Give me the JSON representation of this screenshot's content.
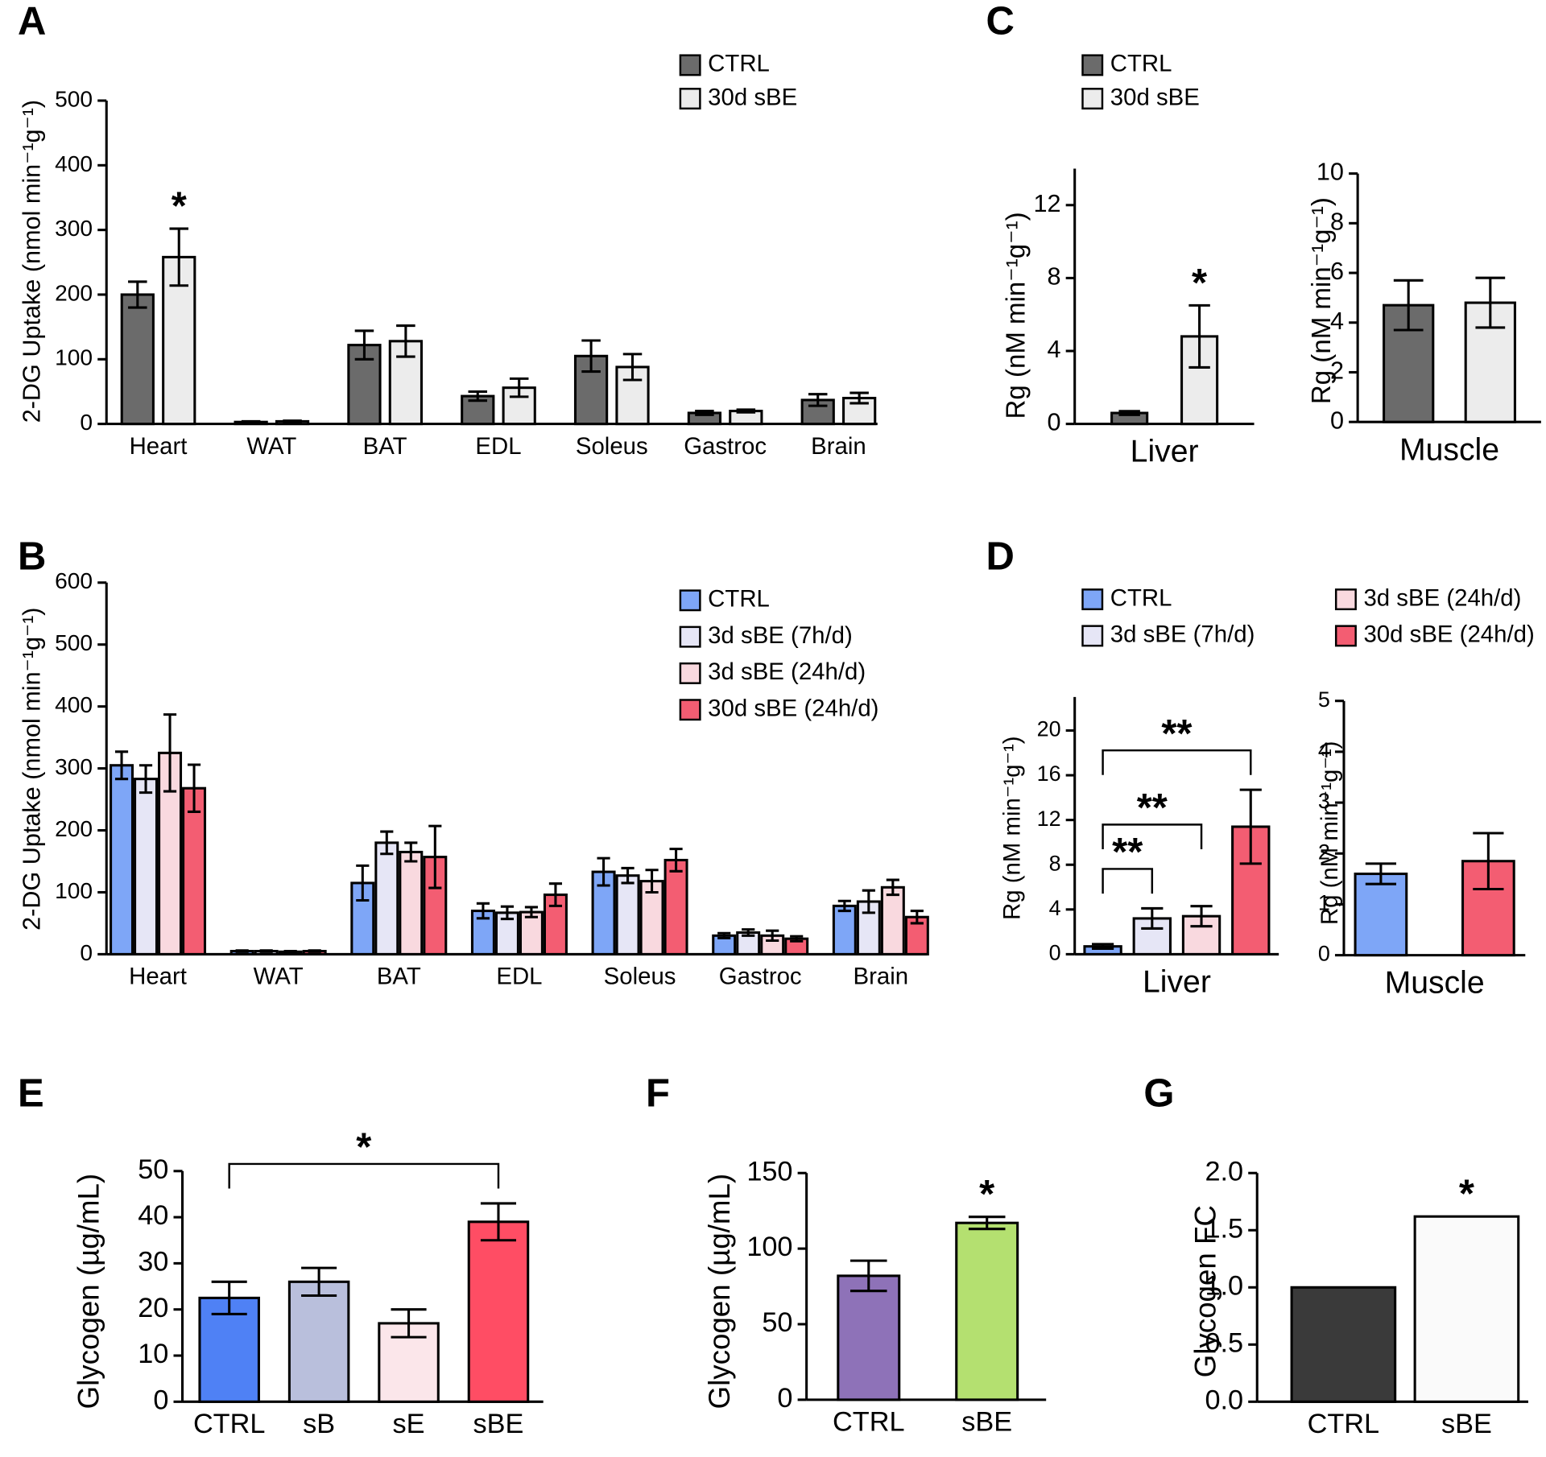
{
  "chart_data": [
    {
      "type": "bar",
      "panel": "A",
      "ylabel": "2-DG Uptake (nmol min⁻¹g⁻¹)",
      "categories": [
        "Heart",
        "WAT",
        "BAT",
        "EDL",
        "Soleus",
        "Gastroc",
        "Brain"
      ],
      "series": [
        {
          "name": "CTRL",
          "color": "#6b6b6b",
          "values": [
            200,
            3,
            122,
            43,
            105,
            17,
            37
          ],
          "errors": [
            20,
            1,
            22,
            7,
            24,
            3,
            9
          ]
        },
        {
          "name": "30d sBE",
          "color": "#ececec",
          "values": [
            258,
            4,
            128,
            56,
            88,
            20,
            40
          ],
          "errors": [
            44,
            1,
            24,
            14,
            20,
            2,
            8
          ]
        }
      ],
      "ylim": [
        0,
        500
      ],
      "yticks": [
        0,
        100,
        200,
        300,
        400,
        500
      ],
      "legend": true,
      "annotations": [
        {
          "text": "*",
          "bar": 1
        }
      ]
    },
    {
      "type": "bar",
      "panel": "B",
      "ylabel": "2-DG Uptake (nmol min⁻¹g⁻¹)",
      "categories": [
        "Heart",
        "WAT",
        "BAT",
        "EDL",
        "Soleus",
        "Gastroc",
        "Brain"
      ],
      "series": [
        {
          "name": "CTRL",
          "color": "#7ea6f7",
          "values": [
            305,
            5,
            115,
            70,
            133,
            30,
            78
          ],
          "errors": [
            22,
            1,
            28,
            12,
            22,
            4,
            8
          ]
        },
        {
          "name": "3d sBE (7h/d)",
          "color": "#e6e6f6",
          "values": [
            283,
            5,
            180,
            67,
            127,
            35,
            85
          ],
          "errors": [
            22,
            1,
            18,
            10,
            12,
            5,
            18
          ]
        },
        {
          "name": "3d sBE (24h/d)",
          "color": "#f9d9df",
          "values": [
            325,
            4,
            165,
            68,
            118,
            30,
            108
          ],
          "errors": [
            62,
            1,
            15,
            8,
            18,
            8,
            12
          ]
        },
        {
          "name": "30d sBE (24h/d)",
          "color": "#f35d72",
          "values": [
            268,
            5,
            157,
            96,
            152,
            25,
            60
          ],
          "errors": [
            38,
            1,
            50,
            18,
            18,
            4,
            10
          ]
        }
      ],
      "ylim": [
        0,
        600
      ],
      "yticks": [
        0,
        100,
        200,
        300,
        400,
        500,
        600
      ],
      "legend": true
    },
    {
      "type": "bar",
      "panel": "C",
      "ylabel": "Rg (nM min⁻¹g⁻¹)",
      "xlabel": "Liver",
      "series": [
        {
          "name": "CTRL",
          "color": "#6b6b6b",
          "values": [
            0.6
          ],
          "errors": [
            0.1
          ]
        },
        {
          "name": "30d sBE",
          "color": "#ececec",
          "values": [
            4.8
          ],
          "errors": [
            1.7
          ]
        }
      ],
      "ylim": [
        0,
        14
      ],
      "yticks": [
        0,
        4,
        8,
        12
      ],
      "legend": true,
      "annotations": [
        {
          "text": "*",
          "bar": 1
        }
      ]
    },
    {
      "type": "bar",
      "ylabel": "Rg (nM min⁻¹g⁻¹)",
      "xlabel": "Muscle",
      "series": [
        {
          "color": "#6b6b6b",
          "values": [
            4.7
          ],
          "errors": [
            1.0
          ]
        },
        {
          "color": "#ececec",
          "values": [
            4.8
          ],
          "errors": [
            1.0
          ]
        }
      ],
      "ylim": [
        0,
        10
      ],
      "yticks": [
        0,
        2,
        4,
        6,
        8,
        10
      ]
    },
    {
      "type": "bar",
      "panel": "D",
      "ylabel": "Rg (nM min⁻¹g⁻¹)",
      "xlabel": "Liver",
      "series": [
        {
          "name": "CTRL",
          "color": "#7ea6f7",
          "values": [
            0.7
          ],
          "errors": [
            0.2
          ]
        },
        {
          "name": "3d sBE (7h/d)",
          "color": "#e6e6f6",
          "values": [
            3.2
          ],
          "errors": [
            0.9
          ]
        },
        {
          "name": "3d sBE (24h/d)",
          "color": "#f9d9df",
          "values": [
            3.4
          ],
          "errors": [
            0.9
          ]
        },
        {
          "name": "30d sBE (24h/d)",
          "color": "#f35d72",
          "values": [
            11.4
          ],
          "errors": [
            3.3
          ]
        }
      ],
      "ylim": [
        0,
        23
      ],
      "yticks": [
        0,
        4,
        8,
        12,
        16,
        20
      ],
      "legend": true,
      "annotations": [
        {
          "text": "**",
          "from": 0,
          "to": 1
        },
        {
          "text": "**",
          "from": 0,
          "to": 2
        },
        {
          "text": "**",
          "from": 0,
          "to": 3
        }
      ]
    },
    {
      "type": "bar",
      "ylabel": "Rg (nM min⁻¹g⁻¹)",
      "xlabel": "Muscle",
      "series": [
        {
          "color": "#7ea6f7",
          "values": [
            1.6
          ],
          "errors": [
            0.2
          ]
        },
        {
          "color": "#f35d72",
          "values": [
            1.85
          ],
          "errors": [
            0.55
          ]
        }
      ],
      "ylim": [
        0,
        5
      ],
      "yticks": [
        0,
        1,
        2,
        3,
        4,
        5
      ]
    },
    {
      "type": "bar",
      "panel": "E",
      "ylabel": "Glycogen (µg/mL)",
      "categories": [
        "CTRL",
        "sB",
        "sE",
        "sBE"
      ],
      "values": [
        22.5,
        26,
        17,
        39
      ],
      "errors": [
        3.5,
        3,
        3,
        4
      ],
      "colors": [
        "#4f81f5",
        "#b9bfdc",
        "#fbe6ea",
        "#ff4d64"
      ],
      "ylim": [
        0,
        50
      ],
      "yticks": [
        0,
        10,
        20,
        30,
        40,
        50
      ],
      "annotations": [
        {
          "text": "*",
          "from": 0,
          "to": 3
        }
      ]
    },
    {
      "type": "bar",
      "panel": "F",
      "ylabel": "Glycogen (µg/mL)",
      "categories": [
        "CTRL",
        "sBE"
      ],
      "values": [
        82,
        117
      ],
      "errors": [
        10,
        4
      ],
      "colors": [
        "#8e72b8",
        "#b4e070"
      ],
      "ylim": [
        0,
        150
      ],
      "yticks": [
        0,
        50,
        100,
        150
      ],
      "annotations": [
        {
          "text": "*",
          "bar": 1
        }
      ]
    },
    {
      "type": "bar",
      "panel": "G",
      "ylabel": "Glycogen FC",
      "categories": [
        "CTRL",
        "sBE"
      ],
      "values": [
        1.0,
        1.62
      ],
      "colors": [
        "#3a3a3a",
        "#fafafa"
      ],
      "ylim": [
        0,
        2
      ],
      "yticks": [
        {
          "value": 0,
          "label": "0.0"
        },
        0.5,
        {
          "value": 1,
          "label": "1.0"
        },
        1.5,
        {
          "value": 2,
          "label": "2.0"
        }
      ],
      "annotations": [
        {
          "text": "*",
          "bar": 1
        }
      ]
    }
  ]
}
